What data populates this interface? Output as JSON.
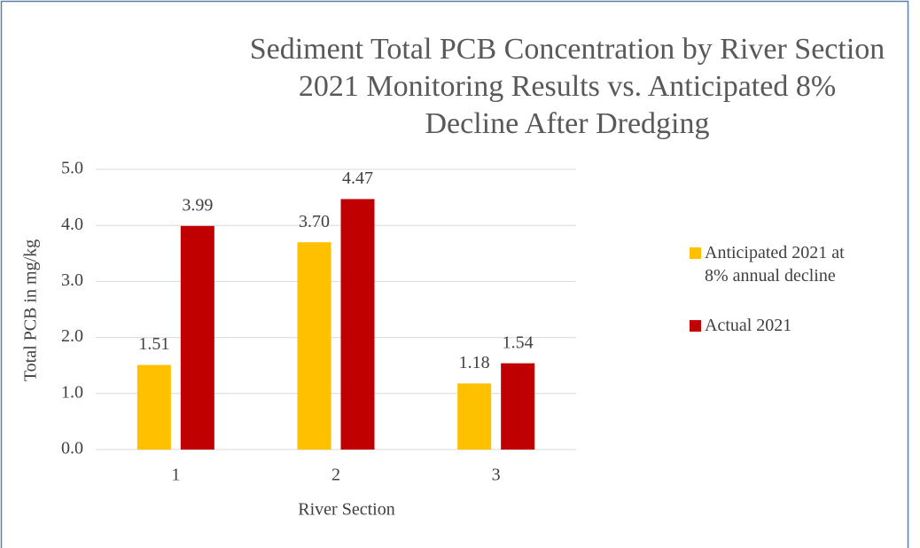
{
  "chart_data": {
    "type": "bar",
    "title": [
      "Sediment Total PCB Concentration by River Section",
      "2021 Monitoring Results vs. Anticipated 8%",
      "Decline After Dredging"
    ],
    "x_label": "River Section",
    "y_label": "Total PCB in mg/kg",
    "categories": [
      "1",
      "2",
      "3"
    ],
    "series": [
      {
        "name": "Anticipated 2021 at 8% annual decline",
        "color": "#ffc000",
        "values": [
          1.51,
          3.7,
          1.18
        ],
        "value_labels": [
          "1.51",
          "3.70",
          "1.18"
        ]
      },
      {
        "name": "Actual 2021",
        "color": "#c00000",
        "values": [
          3.99,
          4.47,
          1.54
        ],
        "value_labels": [
          "3.99",
          "4.47",
          "1.54"
        ]
      }
    ],
    "ylim": [
      0,
      5
    ],
    "yticks": [
      {
        "value": 0,
        "label": "0.0"
      },
      {
        "value": 1,
        "label": "1.0"
      },
      {
        "value": 2,
        "label": "2.0"
      },
      {
        "value": 3,
        "label": "3.0"
      },
      {
        "value": 4,
        "label": "4.0"
      },
      {
        "value": 5,
        "label": "5.0"
      }
    ],
    "grid": true,
    "legend": "right"
  }
}
